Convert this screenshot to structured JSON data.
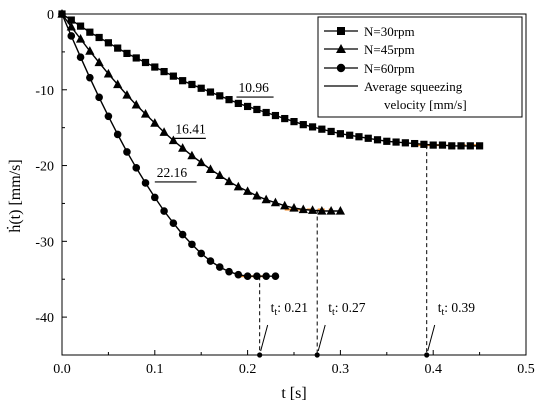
{
  "chart_data": {
    "type": "line",
    "xlabel": "t [s]",
    "ylabel": "ḣ(t) [mm/s]",
    "xlim": [
      0.0,
      0.5
    ],
    "ylim": [
      -45,
      0
    ],
    "x_ticks": [
      "0.0",
      "0.1",
      "0.2",
      "0.3",
      "0.4",
      "0.5"
    ],
    "y_ticks": [
      "0",
      "-10",
      "-20",
      "-30",
      "-40"
    ],
    "grid": false,
    "legend_position": "top-right",
    "legend_extra": [
      "Average squeezing",
      "velocity [mm/s]"
    ],
    "series": [
      {
        "name": "N=30rpm",
        "marker": "square",
        "x": [
          0.0,
          0.01,
          0.02,
          0.03,
          0.04,
          0.05,
          0.06,
          0.07,
          0.08,
          0.09,
          0.1,
          0.11,
          0.12,
          0.13,
          0.14,
          0.15,
          0.16,
          0.17,
          0.18,
          0.19,
          0.2,
          0.21,
          0.22,
          0.23,
          0.24,
          0.25,
          0.26,
          0.27,
          0.28,
          0.29,
          0.3,
          0.31,
          0.32,
          0.33,
          0.34,
          0.35,
          0.36,
          0.37,
          0.38,
          0.39,
          0.4,
          0.41,
          0.42,
          0.43,
          0.44,
          0.45
        ],
        "values": [
          0.0,
          -0.8,
          -1.6,
          -2.4,
          -3.1,
          -3.8,
          -4.5,
          -5.2,
          -5.8,
          -6.4,
          -7.0,
          -7.6,
          -8.2,
          -8.8,
          -9.3,
          -9.8,
          -10.3,
          -10.8,
          -11.3,
          -11.8,
          -12.2,
          -12.6,
          -13.0,
          -13.4,
          -13.8,
          -14.2,
          -14.6,
          -14.9,
          -15.2,
          -15.5,
          -15.8,
          -16.0,
          -16.2,
          -16.4,
          -16.6,
          -16.8,
          -16.9,
          -17.0,
          -17.1,
          -17.2,
          -17.3,
          -17.3,
          -17.4,
          -17.4,
          -17.4,
          -17.4
        ]
      },
      {
        "name": "N=45rpm",
        "marker": "triangle",
        "x": [
          0.0,
          0.01,
          0.02,
          0.03,
          0.04,
          0.05,
          0.06,
          0.07,
          0.08,
          0.09,
          0.1,
          0.11,
          0.12,
          0.13,
          0.14,
          0.15,
          0.16,
          0.17,
          0.18,
          0.19,
          0.2,
          0.21,
          0.22,
          0.23,
          0.24,
          0.25,
          0.26,
          0.27,
          0.28,
          0.29,
          0.3
        ],
        "values": [
          0.0,
          -1.7,
          -3.3,
          -4.9,
          -6.4,
          -7.9,
          -9.3,
          -10.7,
          -12.0,
          -13.2,
          -14.4,
          -15.6,
          -16.7,
          -17.7,
          -18.7,
          -19.6,
          -20.5,
          -21.3,
          -22.1,
          -22.8,
          -23.4,
          -24.0,
          -24.5,
          -24.9,
          -25.3,
          -25.6,
          -25.8,
          -25.9,
          -26.0,
          -26.0,
          -26.0
        ]
      },
      {
        "name": "N=60rpm",
        "marker": "circle",
        "x": [
          0.0,
          0.01,
          0.02,
          0.03,
          0.04,
          0.05,
          0.06,
          0.07,
          0.08,
          0.09,
          0.1,
          0.11,
          0.12,
          0.13,
          0.14,
          0.15,
          0.16,
          0.17,
          0.18,
          0.19,
          0.2,
          0.21,
          0.22,
          0.23
        ],
        "values": [
          0.0,
          -2.9,
          -5.7,
          -8.4,
          -11.0,
          -13.5,
          -15.9,
          -18.2,
          -20.3,
          -22.3,
          -24.2,
          -26.0,
          -27.6,
          -29.1,
          -30.4,
          -31.6,
          -32.6,
          -33.4,
          -34.0,
          -34.4,
          -34.6,
          -34.6,
          -34.6,
          -34.6
        ]
      }
    ],
    "average_velocity_lines": [
      {
        "label": "10.96",
        "x_start": 0.188,
        "x_end": 0.228,
        "y": -10.96
      },
      {
        "label": "16.41",
        "x_start": 0.12,
        "x_end": 0.155,
        "y": -16.41
      },
      {
        "label": "22.16",
        "x_start": 0.1,
        "x_end": 0.145,
        "y": -22.16
      }
    ],
    "plateau_marks": [
      {
        "series": "N=30rpm",
        "x_start": 0.38,
        "x_end": 0.45,
        "y": -17.3
      },
      {
        "series": "N=45rpm",
        "x_start": 0.24,
        "x_end": 0.29,
        "y": -25.8
      },
      {
        "series": "N=60rpm",
        "x_start": 0.19,
        "x_end": 0.22,
        "y": -34.6
      }
    ],
    "time_markers": [
      {
        "label": "t",
        "sub": "t",
        "value_text": ": 0.21",
        "x": 0.213,
        "y_top": -34.6
      },
      {
        "label": "t",
        "sub": "t",
        "value_text": ": 0.27",
        "x": 0.275,
        "y_top": -25.8
      },
      {
        "label": "t",
        "sub": "t",
        "value_text": ": 0.39",
        "x": 0.393,
        "y_top": -17.3
      }
    ]
  }
}
